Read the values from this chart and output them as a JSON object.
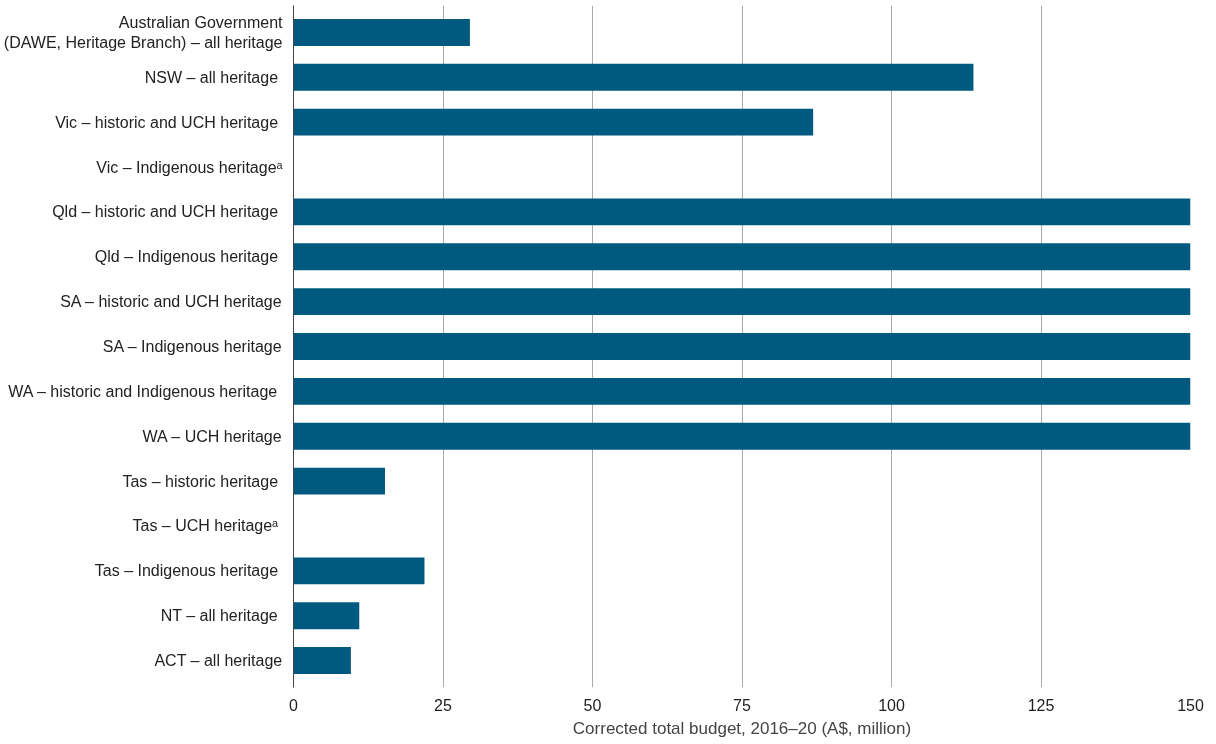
{
  "chart_data": {
    "type": "bar",
    "orientation": "horizontal",
    "xlabel": "Corrected total budget, 2016–20 (A$, million)",
    "categories": [
      "Australian Government\n(DAWE, Heritage Branch) – all heritage",
      "NSW  – all heritage",
      "Vic  – historic and UCH heritage",
      "Vic – Indigenous heritageᵃ",
      "Qld  – historic and UCH heritage",
      "Qld  – Indigenous heritage",
      "SA – historic and UCH heritage",
      "SA – Indigenous heritage",
      "WA  – historic and Indigenous heritage",
      "WA – UCH heritage",
      "Tas  – historic heritage",
      "Tas – UCH  heritageᵃ",
      "Tas  – Indigenous heritage",
      "NT –  all heritage",
      "ACT – all heritage"
    ],
    "values": [
      29.5,
      113.7,
      86.9,
      null,
      150,
      150,
      150,
      150,
      150,
      150,
      15.3,
      null,
      21.9,
      11.0,
      9.6
    ],
    "color": "#005a80",
    "xlim": [
      0,
      150
    ],
    "xticks": [
      0,
      25,
      50,
      75,
      100,
      125,
      150
    ],
    "grid": "x"
  }
}
